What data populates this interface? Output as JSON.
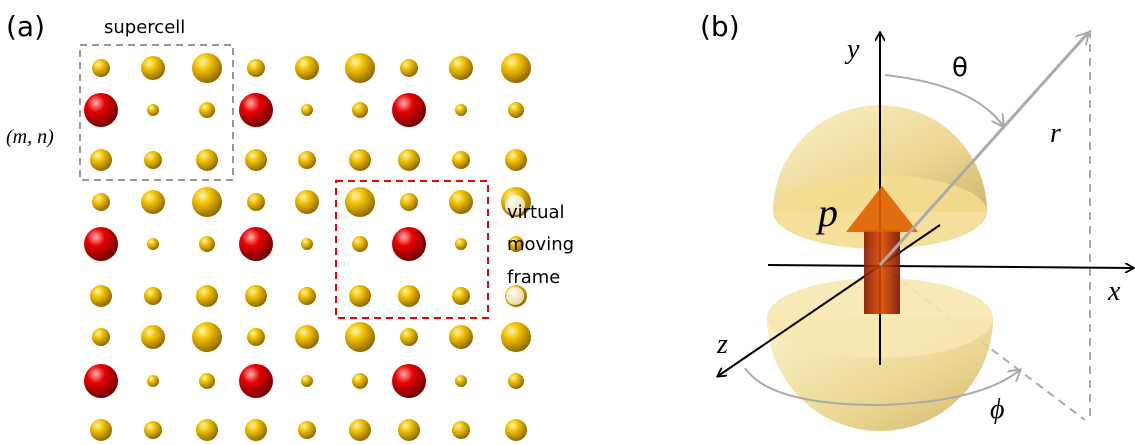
{
  "panel_a": {
    "label": "(a)",
    "supercell_label": "supercell",
    "site_label": "(m, n)",
    "frame_label": [
      "virtual",
      "moving",
      "frame"
    ]
  },
  "panel_b": {
    "label": "(b)",
    "axis_y": "y",
    "axis_x": "x",
    "axis_z": "z",
    "polar_angle": "θ",
    "radius": "r",
    "moment": "p",
    "azimuth": "ϕ"
  }
}
